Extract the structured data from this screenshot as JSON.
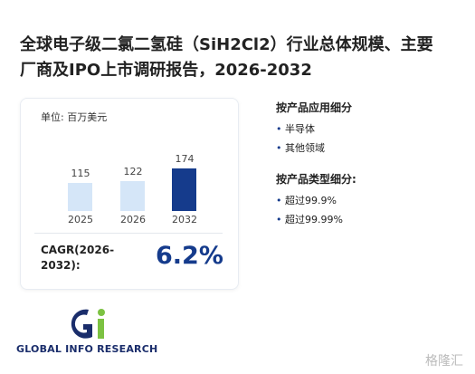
{
  "header": {
    "title": "全球电子级二氯二氢硅（SiH2Cl2）行业总体规模、主要厂商及IPO上市调研报告，2026-2032"
  },
  "chart_data": {
    "type": "bar",
    "unit": "单位: 百万美元",
    "categories": [
      "2025",
      "2026",
      "2032"
    ],
    "values": [
      115,
      122,
      174
    ],
    "colors": [
      "#d5e6f8",
      "#d5e6f8",
      "#153b8c"
    ]
  },
  "cagr": {
    "label": "CAGR(2026-2032):",
    "value": "6.2%"
  },
  "segments": [
    {
      "title": "按产品应用细分",
      "items": [
        "半导体",
        "其他领域"
      ]
    },
    {
      "title": "按产品类型细分:",
      "items": [
        "超过99.9%",
        "超过99.99%"
      ]
    }
  ],
  "logo": {
    "text": "GLOBAL INFO RESEARCH"
  },
  "watermark": "格隆汇"
}
